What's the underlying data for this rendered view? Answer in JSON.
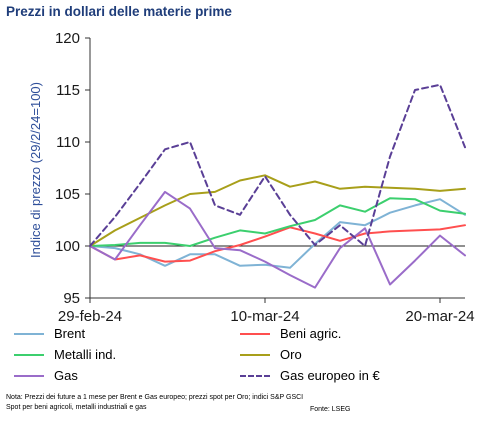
{
  "title": "Prezzi in dollari delle materie prime",
  "note": "Nota: Prezzi dei future a 1 mese per Brent e Gas europeo; prezzi spot per Oro; indici S&P GSCI Spot per beni agricoli, metalli industriali e gas",
  "source": "Fonte: LSEG",
  "chart_data": {
    "type": "line",
    "ylabel": "Indice di prezzo (29/2/24=100)",
    "xlabel": "",
    "ylim": [
      95,
      120
    ],
    "yticks": [
      95,
      100,
      105,
      110,
      115,
      120
    ],
    "x": [
      "29-feb-24",
      "01-mar-24",
      "04-mar-24",
      "05-mar-24",
      "06-mar-24",
      "07-mar-24",
      "08-mar-24",
      "11-mar-24",
      "12-mar-24",
      "13-mar-24",
      "14-mar-24",
      "15-mar-24",
      "18-mar-24",
      "19-mar-24",
      "20-mar-24",
      "21-mar-24"
    ],
    "xtick_labels": [
      {
        "label": "29-feb-24",
        "index": 0
      },
      {
        "label": "10-mar-24",
        "index": 7
      },
      {
        "label": "20-mar-24",
        "index": 14
      }
    ],
    "legend_position": "bottom",
    "series": [
      {
        "name": "Brent",
        "color": "#7fb3d5",
        "dash": false,
        "values": [
          100.0,
          99.8,
          99.2,
          98.1,
          99.2,
          99.2,
          98.1,
          98.2,
          97.9,
          100.2,
          102.3,
          102.0,
          103.2,
          103.9,
          104.5,
          103.0
        ]
      },
      {
        "name": "Beni agric.",
        "color": "#ff4f4f",
        "dash": false,
        "values": [
          100.0,
          98.7,
          99.1,
          98.5,
          98.6,
          99.5,
          100.1,
          100.9,
          101.8,
          101.2,
          100.5,
          101.2,
          101.4,
          101.5,
          101.6,
          102.0
        ]
      },
      {
        "name": "Metalli ind.",
        "color": "#3ccf6e",
        "dash": false,
        "values": [
          100.0,
          100.1,
          100.3,
          100.3,
          100.0,
          100.8,
          101.5,
          101.2,
          101.9,
          102.5,
          103.9,
          103.3,
          104.6,
          104.5,
          103.4,
          103.1
        ]
      },
      {
        "name": "Oro",
        "color": "#a89f1a",
        "dash": false,
        "values": [
          100.0,
          101.5,
          102.7,
          103.9,
          105.0,
          105.2,
          106.3,
          106.8,
          105.7,
          106.2,
          105.5,
          105.7,
          105.6,
          105.5,
          105.3,
          105.5
        ]
      },
      {
        "name": "Gas",
        "color": "#9a6cc9",
        "dash": false,
        "values": [
          100.0,
          98.7,
          102.0,
          105.2,
          103.6,
          99.8,
          99.6,
          98.5,
          97.2,
          96.0,
          99.8,
          101.7,
          96.3,
          98.6,
          101.0,
          99.1
        ]
      },
      {
        "name": "Gas europeo in €",
        "color": "#5a3f96",
        "dash": true,
        "values": [
          100.0,
          102.8,
          106.0,
          109.3,
          110.0,
          103.9,
          103.0,
          106.7,
          103.0,
          100.1,
          102.0,
          100.0,
          108.6,
          115.0,
          115.5,
          109.5
        ]
      }
    ]
  }
}
